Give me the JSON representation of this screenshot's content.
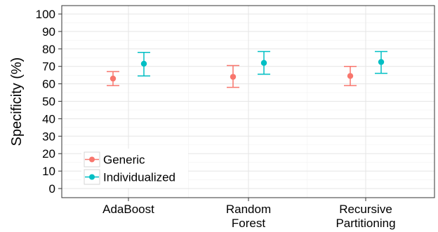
{
  "chart_data": {
    "type": "scatter",
    "categories": [
      [
        "AdaBoost"
      ],
      [
        "Random",
        "Forest"
      ],
      [
        "Recursive",
        "Partitioning"
      ]
    ],
    "ylabel": "Specificity (%)",
    "xlabel": "",
    "ylim": [
      0,
      100
    ],
    "yticks": [
      0,
      10,
      20,
      30,
      40,
      50,
      60,
      70,
      80,
      90,
      100
    ],
    "grid": true,
    "legend_position": "bottom-left",
    "series": [
      {
        "name": "Generic",
        "color": "#F8766D",
        "values": [
          63,
          64,
          64.5
        ],
        "lower": [
          59,
          58,
          59
        ],
        "upper": [
          67,
          70.5,
          70
        ]
      },
      {
        "name": "Individualized",
        "color": "#00BFC4",
        "values": [
          71.5,
          72,
          72.5
        ],
        "lower": [
          64.5,
          65.5,
          66
        ],
        "upper": [
          78,
          78.5,
          78.5
        ]
      }
    ]
  }
}
